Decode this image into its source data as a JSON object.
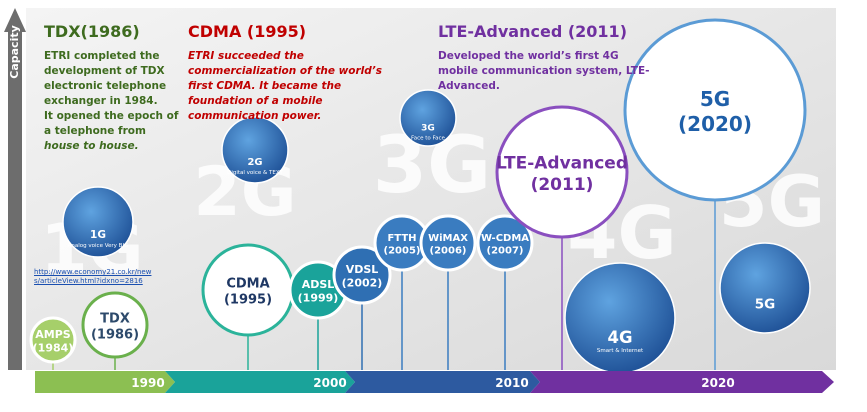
{
  "side_label": "Capacity",
  "eras": [
    {
      "title": "TDX(1986)",
      "paragraphs": [
        "ETRI completed the development of TDX electronic telephone exchanger in 1984.",
        "It opened the epoch of a telephone from"
      ],
      "emphasis": "house to house."
    },
    {
      "title": "CDMA (1995)",
      "paragraphs": [
        "ETRI succeeded the commercialization of the world’s first CDMA. It became the foundation of a mobile communication power."
      ]
    },
    {
      "title": "LTE-Advanced (2011)",
      "paragraphs": [
        "Developed the world’s first 4G mobile communication system, LTE-Advanced."
      ]
    }
  ],
  "source_link": "http://www.economy21.co.kr/news/articleView.html?idxno=2816",
  "generations": [
    {
      "watermark": "1G",
      "icon_title": "1G",
      "icon_caption": "Analog voice Very BIG"
    },
    {
      "watermark": "2G",
      "icon_title": "2G",
      "icon_caption": "Digital voice & TEXT"
    },
    {
      "watermark": "3G",
      "icon_title": "3G",
      "icon_caption": "Face to Face"
    },
    {
      "watermark": "4G",
      "icon_title": "4G",
      "icon_caption": "Smart & Internet"
    },
    {
      "watermark": "5G",
      "icon_title": "5G",
      "icon_caption": ""
    }
  ],
  "technologies": [
    {
      "name": "AMPS",
      "year": "(1984)"
    },
    {
      "name": "TDX",
      "year": "(1986)"
    },
    {
      "name": "CDMA",
      "year": "(1995)"
    },
    {
      "name": "ADSL",
      "year": "(1999)"
    },
    {
      "name": "VDSL",
      "year": "(2002)"
    },
    {
      "name": "FTTH",
      "year": "(2005)"
    },
    {
      "name": "WiMAX",
      "year": "(2006)"
    },
    {
      "name": "W-CDMA",
      "year": "(2007)"
    },
    {
      "name": "LTE-Advanced",
      "year": "(2011)"
    },
    {
      "name": "5G",
      "year": "(2020)"
    }
  ],
  "timeline": [
    "1990",
    "2000",
    "2010",
    "2020"
  ]
}
